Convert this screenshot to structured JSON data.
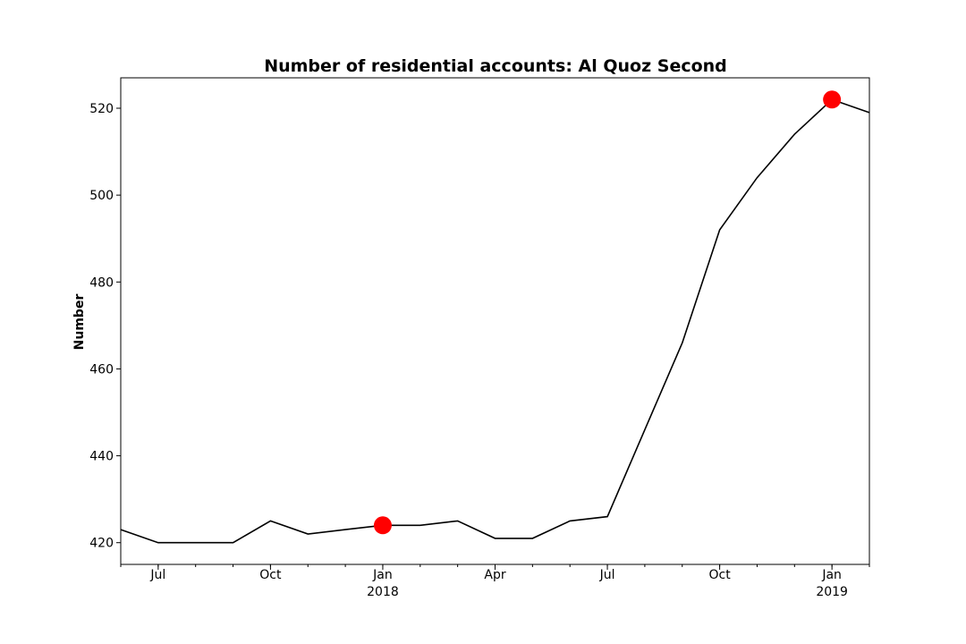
{
  "chart_data": {
    "type": "line",
    "title": "Number of residential accounts: Al Quoz Second",
    "xlabel": "",
    "ylabel": "Number",
    "x": [
      "2017-06",
      "2017-07",
      "2017-08",
      "2017-09",
      "2017-10",
      "2017-11",
      "2017-12",
      "2018-01",
      "2018-02",
      "2018-03",
      "2018-04",
      "2018-05",
      "2018-06",
      "2018-07",
      "2018-08",
      "2018-09",
      "2018-10",
      "2018-11",
      "2018-12",
      "2019-01",
      "2019-02"
    ],
    "series": [
      {
        "values": [
          423,
          420,
          420,
          420,
          425,
          422,
          423,
          424,
          424,
          425,
          421,
          421,
          425,
          426,
          446,
          466,
          492,
          504,
          514,
          522,
          519
        ],
        "color": "#000000"
      }
    ],
    "highlights": [
      {
        "x": "2018-01",
        "value": 424,
        "color": "#ff0000"
      },
      {
        "x": "2019-01",
        "value": 522,
        "color": "#ff0000"
      }
    ],
    "ylim": [
      415,
      527
    ],
    "yticks": [
      420,
      440,
      460,
      480,
      500,
      520
    ],
    "xlim": [
      "2017-06",
      "2019-02"
    ],
    "xticks": [
      {
        "x": "2017-07",
        "label": "Jul",
        "year": ""
      },
      {
        "x": "2017-10",
        "label": "Oct",
        "year": ""
      },
      {
        "x": "2018-01",
        "label": "Jan",
        "year": "2018"
      },
      {
        "x": "2018-04",
        "label": "Apr",
        "year": ""
      },
      {
        "x": "2018-07",
        "label": "Jul",
        "year": ""
      },
      {
        "x": "2018-10",
        "label": "Oct",
        "year": ""
      },
      {
        "x": "2019-01",
        "label": "Jan",
        "year": "2019"
      }
    ],
    "grid": false,
    "legend": "none"
  }
}
